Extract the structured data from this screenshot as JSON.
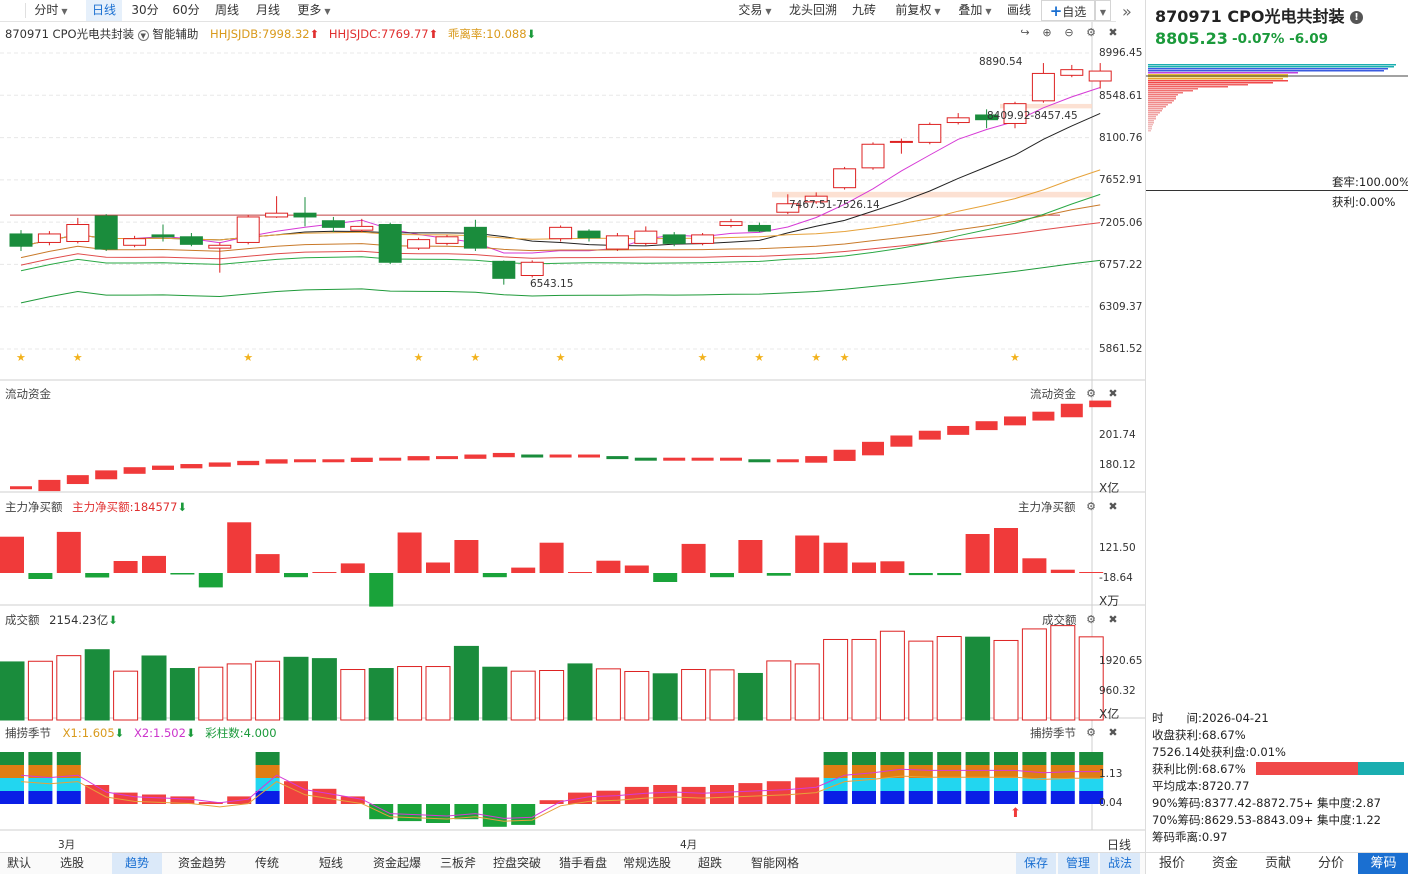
{
  "toolbar": {
    "period_tabs": [
      "分时",
      "日线",
      "30分",
      "60分",
      "周线",
      "月线",
      "更多"
    ],
    "active_period": "日线",
    "right_buttons": [
      "交易",
      "龙头回溯",
      "九砖",
      "前复权",
      "叠加",
      "画线",
      "自选"
    ]
  },
  "main_chart": {
    "stock_label": "870971 CPO光电共封装",
    "assist_label": "智能辅助",
    "ind1": "HHJSJDB:7998.32",
    "ind2": "HHJSJDC:7769.77",
    "ind3": "乖离率:10.088",
    "y_ticks": [
      "8996.45",
      "8548.61",
      "8100.76",
      "7652.91",
      "7205.06",
      "6757.22",
      "6309.37",
      "5861.52"
    ],
    "annot_high": "8890.54",
    "annot_mid": "8409.92-8457.45",
    "annot_band": "7467.51-7526.14",
    "annot_low": "6543.15"
  },
  "flow_panel": {
    "title": "流动资金",
    "right_title": "流动资金",
    "y_ticks": [
      "201.74",
      "180.12"
    ],
    "unit": "X亿"
  },
  "net_panel": {
    "title": "主力净买额",
    "value": "主力净买额:184577",
    "right_title": "主力净买额",
    "y_ticks": [
      "121.50",
      "-18.64"
    ],
    "unit": "X万"
  },
  "vol_panel": {
    "title": "成交额",
    "value": "2154.23亿",
    "right_title": "成交额",
    "y_ticks": [
      "1920.65",
      "960.32"
    ],
    "unit": "X亿"
  },
  "season_panel": {
    "title": "捕捞季节",
    "x1": "X1:1.605",
    "x2": "X2:1.502",
    "cols": "彩柱数:4.000",
    "right_title": "捕捞季节",
    "y_ticks": [
      "1.13",
      "0.04"
    ]
  },
  "x_axis": {
    "labels": [
      "3月",
      "4月"
    ],
    "period_label": "日线"
  },
  "side": {
    "title": "870971 CPO光电共封装",
    "price": "8805.23",
    "change": "-0.07%  -6.09",
    "trapped": "套牢:100.00%",
    "profit": "获利:0.00%",
    "rows": [
      "时　　间:2026-04-21",
      "收盘获利:68.67%",
      "7526.14处获利盘:0.01%",
      "获利比例:68.67%",
      "平均成本:8720.77",
      "90%筹码:8377.42-8872.75+  集中度:2.87",
      "70%筹码:8629.53-8843.09+  集中度:1.22",
      "筹码乖离:0.97"
    ],
    "tabs": [
      "报价",
      "资金",
      "贡献",
      "分价",
      "筹码"
    ],
    "active_tab": "筹码"
  },
  "bottom_tabs": {
    "left": [
      "默认",
      "选股",
      "趋势",
      "资金趋势",
      "传统",
      "短线",
      "资金起爆",
      "三板斧",
      "控盘突破",
      "猎手看盘",
      "常规选股",
      "超跌",
      "智能网格"
    ],
    "active": "趋势",
    "right": [
      "保存",
      "管理",
      "战法"
    ]
  },
  "chart_data": {
    "type": "candlestick",
    "x_labels": [
      "3月",
      "4月"
    ],
    "candles": [
      {
        "o": 7080,
        "c": 6950,
        "h": 7120,
        "l": 6900
      },
      {
        "o": 6990,
        "c": 7080,
        "h": 7110,
        "l": 6960
      },
      {
        "o": 7000,
        "c": 7180,
        "h": 7250,
        "l": 6980
      },
      {
        "o": 7270,
        "c": 6920,
        "h": 7290,
        "l": 6900
      },
      {
        "o": 6960,
        "c": 7030,
        "h": 7060,
        "l": 6940
      },
      {
        "o": 7070,
        "c": 7050,
        "h": 7180,
        "l": 7000
      },
      {
        "o": 7050,
        "c": 6970,
        "h": 7090,
        "l": 6950
      },
      {
        "o": 6930,
        "c": 6960,
        "h": 6990,
        "l": 6670
      },
      {
        "o": 6990,
        "c": 7260,
        "h": 7280,
        "l": 6970
      },
      {
        "o": 7260,
        "c": 7300,
        "h": 7480,
        "l": 7250
      },
      {
        "o": 7300,
        "c": 7260,
        "h": 7470,
        "l": 7160
      },
      {
        "o": 7220,
        "c": 7150,
        "h": 7260,
        "l": 7100
      },
      {
        "o": 7120,
        "c": 7160,
        "h": 7240,
        "l": 7100
      },
      {
        "o": 7180,
        "c": 6780,
        "h": 7200,
        "l": 6760
      },
      {
        "o": 6930,
        "c": 7020,
        "h": 7040,
        "l": 6910
      },
      {
        "o": 6980,
        "c": 7050,
        "h": 7070,
        "l": 6960
      },
      {
        "o": 7150,
        "c": 6930,
        "h": 7230,
        "l": 6900
      },
      {
        "o": 6790,
        "c": 6610,
        "h": 6800,
        "l": 6543
      },
      {
        "o": 6640,
        "c": 6780,
        "h": 6800,
        "l": 6620
      },
      {
        "o": 7030,
        "c": 7150,
        "h": 7170,
        "l": 7000
      },
      {
        "o": 7110,
        "c": 7040,
        "h": 7130,
        "l": 7000
      },
      {
        "o": 6920,
        "c": 7060,
        "h": 7090,
        "l": 6900
      },
      {
        "o": 6980,
        "c": 7110,
        "h": 7160,
        "l": 6960
      },
      {
        "o": 7070,
        "c": 6980,
        "h": 7100,
        "l": 6950
      },
      {
        "o": 6980,
        "c": 7070,
        "h": 7090,
        "l": 6960
      },
      {
        "o": 7170,
        "c": 7210,
        "h": 7240,
        "l": 7150
      },
      {
        "o": 7170,
        "c": 7110,
        "h": 7200,
        "l": 7100
      },
      {
        "o": 7310,
        "c": 7400,
        "h": 7500,
        "l": 7290
      },
      {
        "o": 7420,
        "c": 7480,
        "h": 7520,
        "l": 7400
      },
      {
        "o": 7570,
        "c": 7770,
        "h": 7790,
        "l": 7550
      },
      {
        "o": 7780,
        "c": 8030,
        "h": 8050,
        "l": 7760
      },
      {
        "o": 8050,
        "c": 8060,
        "h": 8090,
        "l": 7930
      },
      {
        "o": 8050,
        "c": 8240,
        "h": 8260,
        "l": 8030
      },
      {
        "o": 8260,
        "c": 8310,
        "h": 8360,
        "l": 8240
      },
      {
        "o": 8340,
        "c": 8290,
        "h": 8400,
        "l": 8200
      },
      {
        "o": 8250,
        "c": 8460,
        "h": 8480,
        "l": 8200
      },
      {
        "o": 8490,
        "c": 8780,
        "h": 8890,
        "l": 8470
      },
      {
        "o": 8760,
        "c": 8820,
        "h": 8870,
        "l": 8740
      },
      {
        "o": 8700,
        "c": 8805,
        "h": 8890,
        "l": 8620
      }
    ],
    "flow_values": [
      161,
      165,
      168,
      171,
      173,
      174,
      175,
      176,
      177,
      178,
      178,
      178,
      179,
      179,
      180,
      180,
      181,
      182,
      181,
      181,
      181,
      180,
      179,
      179,
      179,
      179,
      178,
      178,
      180,
      184,
      189,
      193,
      196,
      199,
      202,
      205,
      208,
      213,
      215
    ],
    "net_values": [
      121,
      -20,
      137,
      -15,
      40,
      57,
      -5,
      -48,
      169,
      63,
      -14,
      3,
      32,
      -112,
      135,
      35,
      110,
      -14,
      18,
      101,
      0,
      41,
      25,
      -30,
      97,
      -14,
      110,
      -9,
      125,
      101,
      35,
      39,
      -7,
      -7,
      130,
      150,
      49,
      11,
      0
    ],
    "vol_values": [
      1760,
      1780,
      1950,
      2130,
      1480,
      1940,
      1560,
      1600,
      1700,
      1780,
      1900,
      1860,
      1530,
      1560,
      1620,
      1620,
      2230,
      1600,
      1480,
      1500,
      1700,
      1550,
      1470,
      1400,
      1530,
      1520,
      1410,
      1790,
      1700,
      2440,
      2440,
      2690,
      2390,
      2530,
      2510,
      2410,
      2760,
      2860,
      2520
    ]
  }
}
